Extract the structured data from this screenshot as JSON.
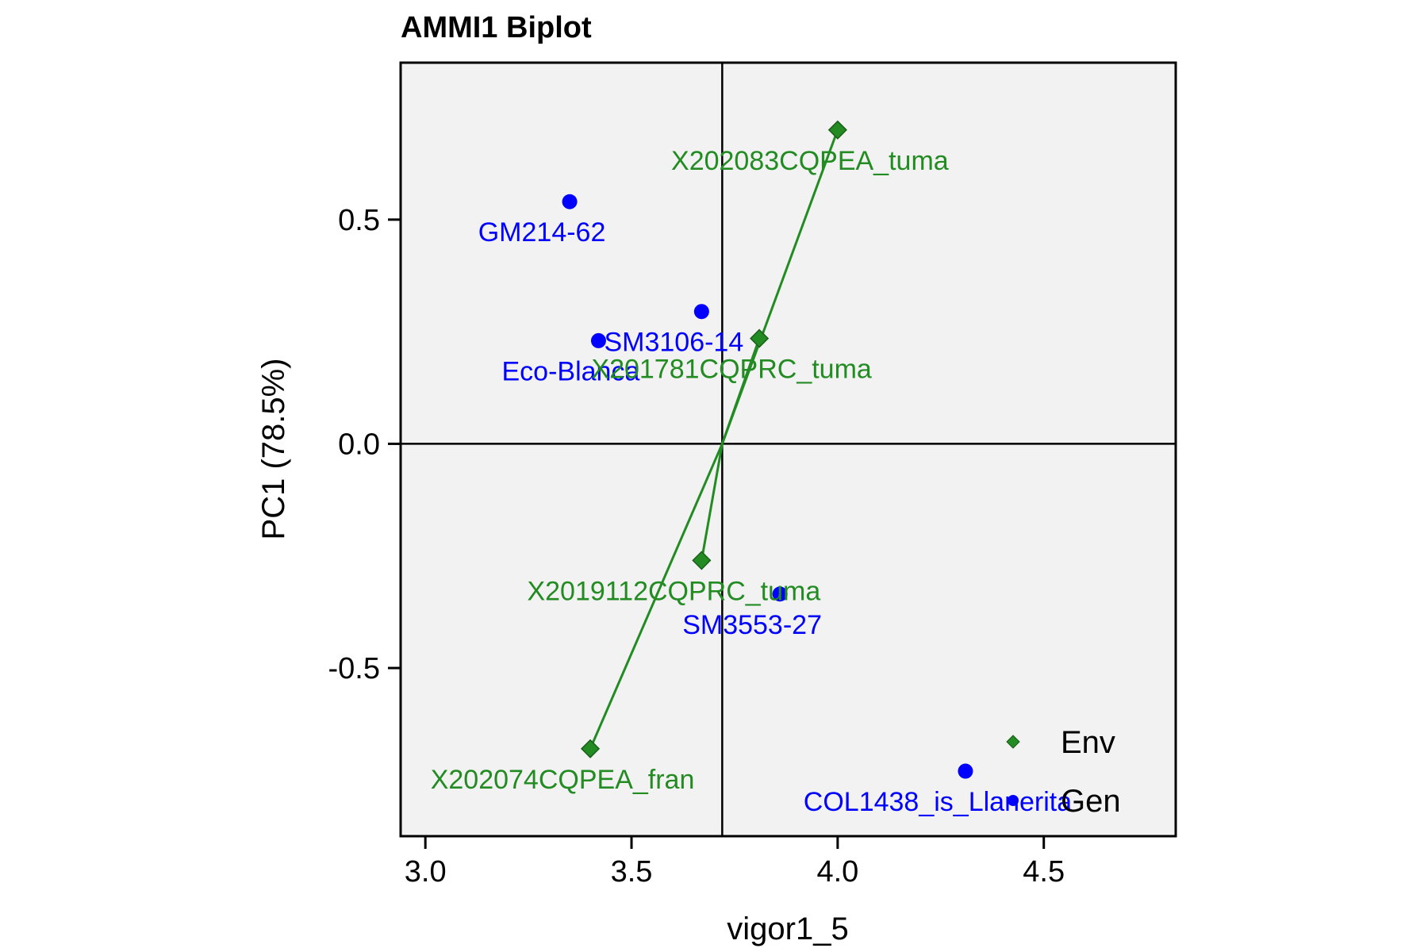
{
  "chart_data": {
    "type": "scatter",
    "title": "AMMI1 Biplot",
    "xlabel": "vigor1_5",
    "ylabel": "PC1 (78.5%)",
    "xlim": [
      2.94,
      4.82
    ],
    "ylim": [
      -0.875,
      0.85
    ],
    "x_ticks": [
      3.0,
      3.5,
      4.0,
      4.5
    ],
    "x_tick_labels": [
      "3.0",
      "3.5",
      "4.0",
      "4.5"
    ],
    "y_ticks": [
      0.5,
      0.0,
      -0.5
    ],
    "y_tick_labels": [
      "0.5",
      "0.0",
      "-0.5"
    ],
    "grid": false,
    "reference_lines": {
      "x": 3.72,
      "y": 0.0
    },
    "origin": [
      3.72,
      0.0
    ],
    "colors": {
      "gen": "#0000ff",
      "env": "#228b22",
      "panel": "#f2f2f2"
    },
    "legend": {
      "position": "bottom-right",
      "items": [
        {
          "label": "Env",
          "marker": "diamond",
          "color": "#228b22"
        },
        {
          "label": "Gen",
          "marker": "circle",
          "color": "#0000ff"
        }
      ]
    },
    "series": [
      {
        "name": "Gen",
        "marker": "circle",
        "color": "#0000ff",
        "points": [
          {
            "label": "GM214-62",
            "x": 3.35,
            "y": 0.54
          },
          {
            "label": "SM3106-14",
            "x": 3.67,
            "y": 0.295
          },
          {
            "label": "Eco-Blanca",
            "x": 3.42,
            "y": 0.23
          },
          {
            "label": "SM3553-27",
            "x": 3.86,
            "y": -0.335
          },
          {
            "label": "COL1438_is_Llanerita",
            "x": 4.31,
            "y": -0.73
          }
        ]
      },
      {
        "name": "Env",
        "marker": "diamond",
        "color": "#228b22",
        "points": [
          {
            "label": "X202083CQPEA_tuma",
            "x": 4.0,
            "y": 0.7
          },
          {
            "label": "X201781CQPRC_tuma",
            "x": 3.81,
            "y": 0.235
          },
          {
            "label": "X2019112CQPRC_tuma",
            "x": 3.67,
            "y": -0.26
          },
          {
            "label": "X202074CQPEA_fran",
            "x": 3.4,
            "y": -0.68
          }
        ]
      }
    ]
  }
}
